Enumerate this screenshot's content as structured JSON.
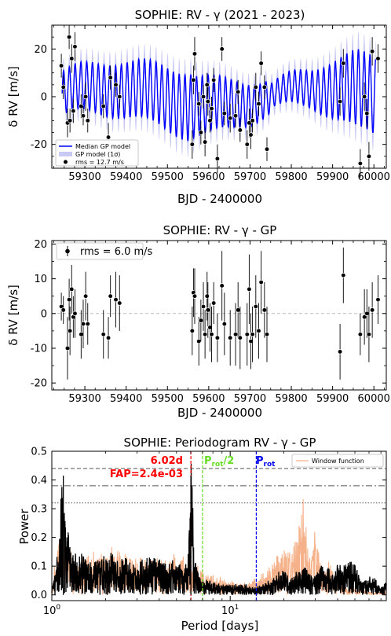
{
  "chart_data": [
    {
      "type": "scatter",
      "title": "SOPHIE: RV - γ (2021 - 2023)",
      "xlabel": "BJD - 2400000",
      "ylabel": "δ RV [m/s]",
      "xlim": [
        59220,
        60030
      ],
      "ylim": [
        -30,
        30
      ],
      "xticks": [
        59300,
        59400,
        59500,
        59600,
        59700,
        59800,
        59900,
        60000
      ],
      "yticks": [
        -20,
        0,
        20
      ],
      "legend": [
        "Median GP model",
        "GP model (1σ)",
        "rms = 12.7 m/s"
      ],
      "legend_position": "lower-left",
      "colors": {
        "median": "#0000ff",
        "band": "#c9c9f5",
        "points": "#000000"
      },
      "series": [
        {
          "name": "rms = 12.7 m/s",
          "x": [
            59243,
            59248,
            59258,
            59262,
            59264,
            59268,
            59272,
            59276,
            59291,
            59296,
            59302,
            59307,
            59345,
            59357,
            59362,
            59375,
            59384,
            59560,
            59563,
            59566,
            59576,
            59581,
            59587,
            59591,
            59596,
            59598,
            59603,
            59607,
            59612,
            59621,
            59632,
            59638,
            59652,
            59665,
            59671,
            59676,
            59693,
            59698,
            59702,
            59706,
            59714,
            59721,
            59727,
            59735,
            59741,
            59918,
            59926,
            59967,
            59977,
            59983,
            59988,
            59996,
            60010
          ],
          "y": [
            13,
            4,
            -11,
            25,
            -10,
            16,
            -6,
            21,
            -4,
            -8,
            0,
            -10,
            -4,
            -17,
            8,
            5,
            0,
            -20,
            7,
            18,
            -3,
            -15,
            0,
            -19,
            5,
            -2,
            -10,
            -5,
            7,
            -26,
            20,
            -7,
            -9,
            -8,
            2,
            -14,
            -20,
            -11,
            -16,
            -10,
            4,
            -3,
            14,
            4,
            -22,
            -2,
            14,
            -28,
            0,
            -7,
            -25,
            19,
            16
          ],
          "yerr": [
            5,
            5,
            6,
            5,
            5,
            6,
            5,
            6,
            5,
            4,
            6,
            5,
            5,
            6,
            5,
            5,
            5,
            6,
            6,
            7,
            5,
            5,
            5,
            6,
            5,
            6,
            5,
            5,
            5,
            6,
            5,
            5,
            6,
            5,
            5,
            5,
            6,
            6,
            6,
            5,
            6,
            5,
            5,
            5,
            5,
            6,
            6,
            6,
            6,
            6,
            6,
            6,
            6
          ]
        }
      ]
    },
    {
      "type": "scatter",
      "title": "SOPHIE: RV - γ - GP",
      "xlabel": "BJD - 2400000",
      "ylabel": "δ RV [m/s]",
      "xlim": [
        59220,
        60030
      ],
      "ylim": [
        -22,
        21
      ],
      "xticks": [
        59300,
        59400,
        59500,
        59600,
        59700,
        59800,
        59900,
        60000
      ],
      "yticks": [
        -20,
        -10,
        0,
        10,
        20
      ],
      "legend": [
        "rms = 6.0 m/s"
      ],
      "legend_position": "top-left",
      "series": [
        {
          "name": "rms = 6.0 m/s",
          "x": [
            59243,
            59248,
            59258,
            59262,
            59264,
            59268,
            59272,
            59276,
            59291,
            59296,
            59302,
            59307,
            59345,
            59357,
            59362,
            59375,
            59384,
            59560,
            59563,
            59566,
            59576,
            59581,
            59587,
            59591,
            59596,
            59598,
            59603,
            59607,
            59612,
            59621,
            59632,
            59638,
            59652,
            59665,
            59671,
            59676,
            59693,
            59698,
            59702,
            59706,
            59714,
            59721,
            59727,
            59735,
            59741,
            59918,
            59926,
            59967,
            59977,
            59983,
            59988,
            59996,
            60010
          ],
          "y": [
            2,
            1,
            -10,
            4,
            -5,
            7,
            -1,
            0,
            -6,
            -3,
            5,
            -3,
            -6,
            -7,
            5,
            4,
            3,
            -5,
            6,
            5,
            -8,
            -2,
            2,
            -6,
            5,
            1,
            -4,
            -6,
            3,
            -7,
            8,
            -3,
            -7,
            -6,
            1,
            -7,
            -6,
            7,
            -8,
            -6,
            2,
            -5,
            9,
            1,
            -6,
            -11,
            11,
            -6,
            -1,
            0,
            -6,
            1,
            4
          ],
          "yerr": [
            4,
            4,
            9,
            6,
            7,
            7,
            6,
            7,
            7,
            7,
            7,
            6,
            7,
            6,
            6,
            8,
            8,
            7,
            7,
            8,
            7,
            6,
            7,
            7,
            7,
            8,
            7,
            8,
            6,
            7,
            10,
            9,
            8,
            9,
            8,
            9,
            9,
            10,
            8,
            8,
            9,
            8,
            9,
            8,
            8,
            8,
            8,
            6,
            8,
            7,
            8,
            8,
            7
          ]
        }
      ]
    },
    {
      "type": "line",
      "title": "SOPHIE: Periodogram RV - γ - GP",
      "xlabel": "Period [days]",
      "ylabel": "Power",
      "xscale": "log",
      "xlim": [
        1.0,
        75
      ],
      "ylim": [
        -0.02,
        0.5
      ],
      "xticks": [
        "10^0",
        "10^1"
      ],
      "yticks": [
        0.0,
        0.1,
        0.2,
        0.3,
        0.4,
        0.5
      ],
      "legend": [
        "Window function"
      ],
      "legend_position": "top-right",
      "peak_label": "6.02d",
      "fap_label": "FAP=2.4e-03",
      "vlines": [
        {
          "x": 6.02,
          "label": "6.02d",
          "color": "#ff0000"
        },
        {
          "x": 7.0,
          "label": "P_rot/2",
          "color": "#66dd22"
        },
        {
          "x": 14.0,
          "label": "P_rot",
          "color": "#0000ee"
        }
      ],
      "hlines": [
        0.44,
        0.38,
        0.32
      ],
      "colors": {
        "periodogram": "#000000",
        "window": "#f5b28a"
      },
      "series": [
        {
          "name": "periodogram",
          "x": [
            1.0,
            1.1,
            1.15,
            1.2,
            1.3,
            1.5,
            1.7,
            2.0,
            2.3,
            2.6,
            3.0,
            3.5,
            4.0,
            4.5,
            5.0,
            5.5,
            5.8,
            6.02,
            6.3,
            6.8,
            7.5,
            9.0,
            10.5,
            12.0,
            14.0,
            16,
            18,
            20,
            22,
            24,
            26,
            28,
            30,
            32,
            34,
            36,
            38,
            40,
            44,
            48,
            55,
            62,
            70,
            75
          ],
          "y": [
            0.02,
            0.15,
            0.41,
            0.2,
            0.12,
            0.11,
            0.09,
            0.13,
            0.1,
            0.1,
            0.08,
            0.12,
            0.1,
            0.09,
            0.1,
            0.07,
            0.12,
            0.41,
            0.1,
            0.05,
            0.04,
            0.03,
            0.03,
            0.03,
            0.02,
            0.04,
            0.06,
            0.07,
            0.05,
            0.07,
            0.08,
            0.06,
            0.05,
            0.1,
            0.07,
            0.08,
            0.05,
            0.1,
            0.08,
            0.1,
            0.04,
            0.06,
            0.02,
            0.04
          ]
        },
        {
          "name": "Window function",
          "x": [
            1.0,
            1.1,
            1.2,
            1.4,
            1.7,
            2.0,
            2.5,
            3.0,
            4.0,
            5.0,
            6.0,
            7.0,
            9.0,
            11,
            13,
            15,
            18,
            20,
            22,
            24,
            26,
            27,
            28,
            30,
            33,
            36,
            40,
            45,
            50,
            60,
            70,
            75
          ],
          "y": [
            0.03,
            0.17,
            0.14,
            0.1,
            0.12,
            0.14,
            0.12,
            0.1,
            0.1,
            0.12,
            0.1,
            0.07,
            0.05,
            0.03,
            0.04,
            0.06,
            0.1,
            0.14,
            0.12,
            0.18,
            0.29,
            0.16,
            0.12,
            0.18,
            0.05,
            0.1,
            0.03,
            0.02,
            0.02,
            0.01,
            0.01,
            0.01
          ]
        }
      ]
    }
  ]
}
